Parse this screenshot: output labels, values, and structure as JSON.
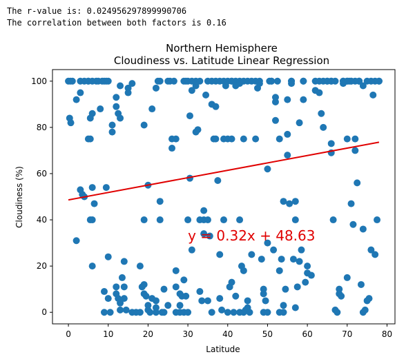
{
  "output": {
    "line1": "The r-value is: 0.024956297899990706",
    "line2": "The correlation between both factors is 0.16"
  },
  "chart_data": {
    "type": "scatter",
    "title": "Northern Hemisphere",
    "subtitle": "Cloudiness vs. Latitude Linear Regression",
    "xlabel": "Latitude",
    "ylabel": "Cloudiness (%)",
    "xlim": [
      -4,
      82
    ],
    "ylim": [
      -5,
      105
    ],
    "xticks": [
      0,
      10,
      20,
      30,
      40,
      50,
      60,
      70,
      80
    ],
    "yticks": [
      0,
      20,
      40,
      60,
      80,
      100
    ],
    "grid": false,
    "point_color": "#1f77b4",
    "line_color": "#e00000",
    "regression": {
      "slope": 0.32,
      "intercept": 48.63,
      "x_range": [
        0,
        78
      ],
      "equation": "y = 0.32x + 48.63",
      "label_at": [
        30,
        31
      ]
    },
    "points": [
      [
        0,
        100
      ],
      [
        0.5,
        100
      ],
      [
        1,
        100
      ],
      [
        0.3,
        84
      ],
      [
        0.6,
        82
      ],
      [
        2,
        31
      ],
      [
        2,
        92
      ],
      [
        3,
        100
      ],
      [
        3,
        95
      ],
      [
        3,
        53
      ],
      [
        3.5,
        51
      ],
      [
        4,
        50
      ],
      [
        4,
        100
      ],
      [
        5,
        100
      ],
      [
        5,
        75
      ],
      [
        5.5,
        75
      ],
      [
        5,
        100
      ],
      [
        6,
        86
      ],
      [
        5.5,
        84
      ],
      [
        6,
        54
      ],
      [
        5.5,
        40
      ],
      [
        6,
        40
      ],
      [
        6.5,
        47
      ],
      [
        6,
        20
      ],
      [
        6,
        100
      ],
      [
        7,
        100
      ],
      [
        7.5,
        100
      ],
      [
        8,
        88
      ],
      [
        8.5,
        100
      ],
      [
        9,
        100
      ],
      [
        9.5,
        100
      ],
      [
        10,
        100
      ],
      [
        9.5,
        54
      ],
      [
        9,
        9
      ],
      [
        9,
        0
      ],
      [
        10,
        24
      ],
      [
        10,
        6
      ],
      [
        10.5,
        0
      ],
      [
        11,
        78
      ],
      [
        11,
        81
      ],
      [
        12,
        93
      ],
      [
        12,
        89
      ],
      [
        12.5,
        86
      ],
      [
        13,
        84
      ],
      [
        12,
        11
      ],
      [
        12,
        8
      ],
      [
        12.5,
        6
      ],
      [
        13,
        4
      ],
      [
        13,
        1
      ],
      [
        13.5,
        15
      ],
      [
        14,
        22
      ],
      [
        14,
        11
      ],
      [
        14,
        6
      ],
      [
        14.5,
        1
      ],
      [
        13,
        98
      ],
      [
        15,
        95
      ],
      [
        15,
        97
      ],
      [
        16,
        99
      ],
      [
        16,
        0
      ],
      [
        17,
        0
      ],
      [
        18,
        20
      ],
      [
        18,
        0
      ],
      [
        18.5,
        11
      ],
      [
        19,
        40
      ],
      [
        19,
        12
      ],
      [
        19,
        8
      ],
      [
        19.5,
        7
      ],
      [
        19,
        81
      ],
      [
        20,
        55
      ],
      [
        20,
        3
      ],
      [
        20,
        1
      ],
      [
        20.5,
        0
      ],
      [
        21,
        6
      ],
      [
        21,
        88
      ],
      [
        22,
        5
      ],
      [
        22,
        2
      ],
      [
        22,
        0
      ],
      [
        22,
        97
      ],
      [
        22.5,
        100
      ],
      [
        23,
        100
      ],
      [
        23,
        48
      ],
      [
        23,
        40
      ],
      [
        23.5,
        0
      ],
      [
        24,
        10
      ],
      [
        24,
        0
      ],
      [
        25,
        3
      ],
      [
        25,
        100
      ],
      [
        25.5,
        100
      ],
      [
        26,
        75
      ],
      [
        26,
        71
      ],
      [
        26.5,
        100
      ],
      [
        27,
        11
      ],
      [
        27,
        75
      ],
      [
        27,
        18
      ],
      [
        27,
        0
      ],
      [
        28,
        8
      ],
      [
        28,
        3
      ],
      [
        28,
        0
      ],
      [
        28.5,
        7
      ],
      [
        29,
        100
      ],
      [
        29,
        14
      ],
      [
        29.5,
        100
      ],
      [
        29,
        0
      ],
      [
        29.5,
        7
      ],
      [
        30,
        40
      ],
      [
        30,
        0
      ],
      [
        30,
        100
      ],
      [
        30.5,
        85
      ],
      [
        30.5,
        58
      ],
      [
        31,
        27
      ],
      [
        31,
        100
      ],
      [
        31,
        96
      ],
      [
        32,
        98
      ],
      [
        32,
        78
      ],
      [
        32.5,
        79
      ],
      [
        32,
        100
      ],
      [
        33,
        100
      ],
      [
        33,
        40
      ],
      [
        33,
        9
      ],
      [
        33.5,
        5
      ],
      [
        34,
        34
      ],
      [
        34,
        44
      ],
      [
        34,
        40
      ],
      [
        34.5,
        94
      ],
      [
        35,
        100
      ],
      [
        35,
        40
      ],
      [
        35,
        5
      ],
      [
        35.5,
        33
      ],
      [
        36,
        100
      ],
      [
        36,
        90
      ],
      [
        36,
        0
      ],
      [
        36.5,
        75
      ],
      [
        37,
        75
      ],
      [
        37,
        89
      ],
      [
        37,
        100
      ],
      [
        37.5,
        57
      ],
      [
        38,
        100
      ],
      [
        38,
        25
      ],
      [
        38,
        6
      ],
      [
        38.5,
        1
      ],
      [
        39,
        75
      ],
      [
        39,
        40
      ],
      [
        39,
        100
      ],
      [
        39.5,
        98
      ],
      [
        40,
        75
      ],
      [
        40,
        100
      ],
      [
        40,
        0
      ],
      [
        40.5,
        11
      ],
      [
        41,
        75
      ],
      [
        41,
        100
      ],
      [
        41,
        100
      ],
      [
        41,
        13
      ],
      [
        41.5,
        0
      ],
      [
        42,
        7
      ],
      [
        42,
        100
      ],
      [
        42,
        98
      ],
      [
        43,
        100
      ],
      [
        43,
        99
      ],
      [
        43,
        40
      ],
      [
        43.5,
        20
      ],
      [
        43,
        0
      ],
      [
        44,
        18
      ],
      [
        44,
        75
      ],
      [
        44,
        100
      ],
      [
        44,
        0
      ],
      [
        44.5,
        1
      ],
      [
        45,
        5
      ],
      [
        45,
        2
      ],
      [
        45,
        100
      ],
      [
        45.5,
        0
      ],
      [
        46,
        25
      ],
      [
        46,
        100
      ],
      [
        47,
        75
      ],
      [
        47,
        100
      ],
      [
        47.5,
        97
      ],
      [
        48,
        100
      ],
      [
        48,
        99
      ],
      [
        48.5,
        23
      ],
      [
        49,
        10
      ],
      [
        49,
        8
      ],
      [
        49,
        0
      ],
      [
        49.5,
        5
      ],
      [
        50,
        30
      ],
      [
        50,
        62
      ],
      [
        50,
        0
      ],
      [
        50.5,
        100
      ],
      [
        51,
        100
      ],
      [
        51,
        100
      ],
      [
        51.5,
        27
      ],
      [
        52,
        91
      ],
      [
        52,
        93
      ],
      [
        52,
        83
      ],
      [
        52.5,
        100
      ],
      [
        53,
        75
      ],
      [
        53,
        18
      ],
      [
        53,
        0
      ],
      [
        53.5,
        23
      ],
      [
        54,
        48
      ],
      [
        54,
        3
      ],
      [
        54,
        0
      ],
      [
        54.5,
        10
      ],
      [
        55,
        77
      ],
      [
        55,
        92
      ],
      [
        55,
        68
      ],
      [
        55.5,
        47
      ],
      [
        56,
        100
      ],
      [
        56,
        100
      ],
      [
        56,
        99
      ],
      [
        56.5,
        23
      ],
      [
        57,
        48
      ],
      [
        57,
        40
      ],
      [
        57,
        2
      ],
      [
        57.5,
        11
      ],
      [
        58,
        82
      ],
      [
        58,
        22
      ],
      [
        58.5,
        27
      ],
      [
        59,
        100
      ],
      [
        59,
        92
      ],
      [
        59,
        100
      ],
      [
        59.5,
        13
      ],
      [
        60,
        20
      ],
      [
        60,
        17
      ],
      [
        61,
        16
      ],
      [
        62,
        96
      ],
      [
        62,
        100
      ],
      [
        63,
        95
      ],
      [
        63,
        100
      ],
      [
        63.5,
        86
      ],
      [
        64,
        80
      ],
      [
        64,
        100
      ],
      [
        65,
        100
      ],
      [
        65,
        100
      ],
      [
        66,
        100
      ],
      [
        66,
        100
      ],
      [
        66,
        73
      ],
      [
        66,
        69
      ],
      [
        66.5,
        40
      ],
      [
        67,
        100
      ],
      [
        67,
        1
      ],
      [
        67.5,
        0
      ],
      [
        68,
        10
      ],
      [
        68,
        8
      ],
      [
        68.5,
        7
      ],
      [
        69,
        100
      ],
      [
        69,
        100
      ],
      [
        70,
        100
      ],
      [
        70,
        75
      ],
      [
        70,
        15
      ],
      [
        70.5,
        100
      ],
      [
        71,
        100
      ],
      [
        71,
        47
      ],
      [
        71.5,
        38
      ],
      [
        72,
        75
      ],
      [
        72,
        70
      ],
      [
        72.5,
        56
      ],
      [
        73,
        100
      ],
      [
        73,
        100
      ],
      [
        73.5,
        12
      ],
      [
        74,
        36
      ],
      [
        74,
        0
      ],
      [
        74.5,
        1
      ],
      [
        75,
        5
      ],
      [
        75.5,
        6
      ],
      [
        76,
        27
      ],
      [
        76.5,
        94
      ],
      [
        77,
        100
      ],
      [
        77,
        25
      ],
      [
        78,
        100
      ],
      [
        78,
        100
      ],
      [
        77.5,
        40
      ],
      [
        74,
        98
      ],
      [
        76,
        100
      ],
      [
        75,
        100
      ],
      [
        73,
        100
      ],
      [
        72,
        100
      ],
      [
        71,
        100
      ],
      [
        70,
        100
      ],
      [
        69,
        99
      ]
    ]
  }
}
